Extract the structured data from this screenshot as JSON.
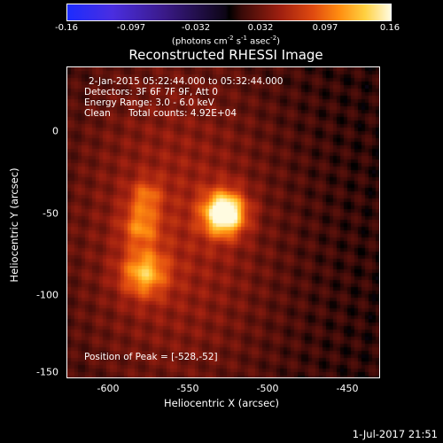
{
  "colorbar": {
    "ticks": [
      "-0.16",
      "-0.097",
      "-0.032",
      "0.032",
      "0.097",
      "0.16"
    ],
    "unit_label": "(photons cm-2 s-1 asec-2)",
    "range": [
      -0.16,
      0.16
    ]
  },
  "chart_data": {
    "type": "heatmap",
    "title": "Reconstructed RHESSI Image",
    "xlabel": "Heliocentric X (arcsec)",
    "ylabel": "Heliocentric Y (arcsec)",
    "xlim": [
      -625,
      -430
    ],
    "ylim": [
      -152,
      35
    ],
    "xticks": [
      "-600",
      "-550",
      "-500",
      "-450"
    ],
    "yticks": [
      "0",
      "-50",
      "-100",
      "-150"
    ],
    "xtick_values": [
      -600,
      -550,
      -500,
      -450
    ],
    "ytick_values": [
      0,
      -50,
      -100,
      -150
    ],
    "sources": [
      {
        "x": -528,
        "y": -52,
        "peak": 0.16,
        "sigma": 9
      },
      {
        "x": -578,
        "y": -88,
        "peak": 0.085,
        "sigma": 10
      },
      {
        "x": -580,
        "y": -60,
        "peak": 0.06,
        "sigma": 8
      },
      {
        "x": -577,
        "y": -42,
        "peak": 0.05,
        "sigma": 7
      }
    ]
  },
  "info": {
    "time_range": "2-Jan-2015 05:22:44.000 to 05:32:44.000",
    "detectors": "Detectors: 3F 6F 7F 9F, Att 0",
    "energy_range": "Energy Range: 3.0 - 6.0 keV",
    "algorithm": "Clean",
    "total_counts": "Total counts: 4.92E+04",
    "peak_position": "Position of Peak = [-528,-52]"
  },
  "timestamp": "1-Jul-2017 21:51"
}
